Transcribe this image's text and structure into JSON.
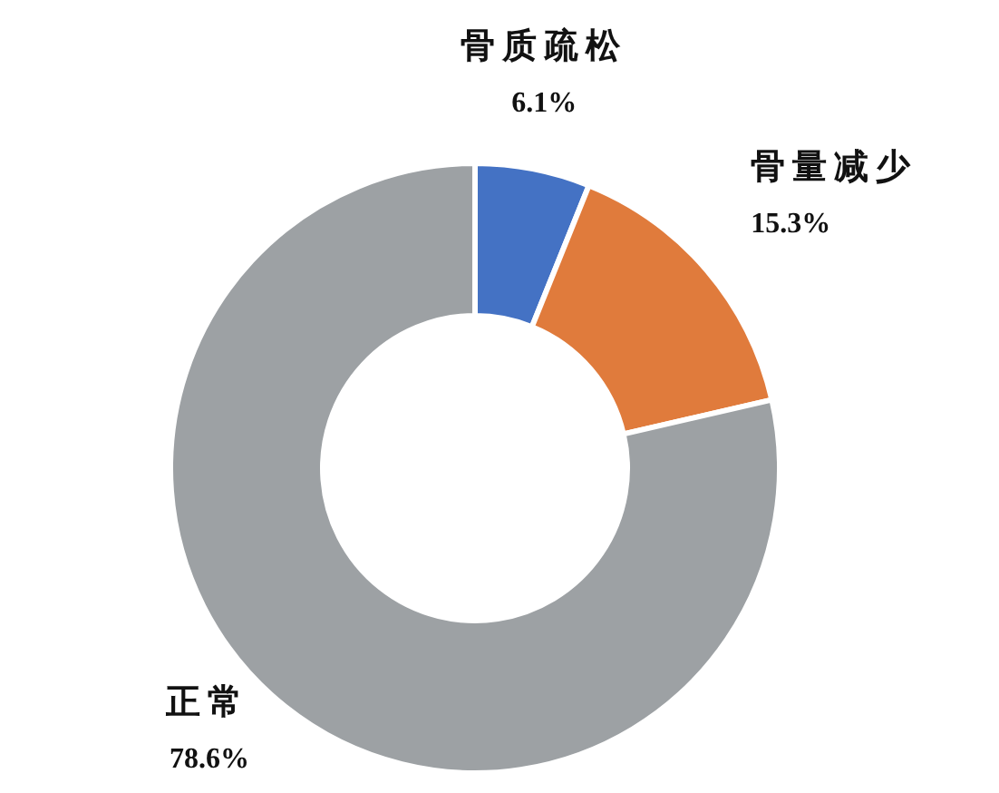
{
  "chart_data": {
    "type": "donut",
    "categories": [
      "骨质疏松",
      "骨量减少",
      "正常"
    ],
    "values": [
      6.1,
      15.3,
      78.6
    ],
    "colors": [
      "#4472c4",
      "#e07b3c",
      "#9da1a4"
    ],
    "value_labels": [
      "6.1%",
      "15.3%",
      "78.6%"
    ]
  }
}
